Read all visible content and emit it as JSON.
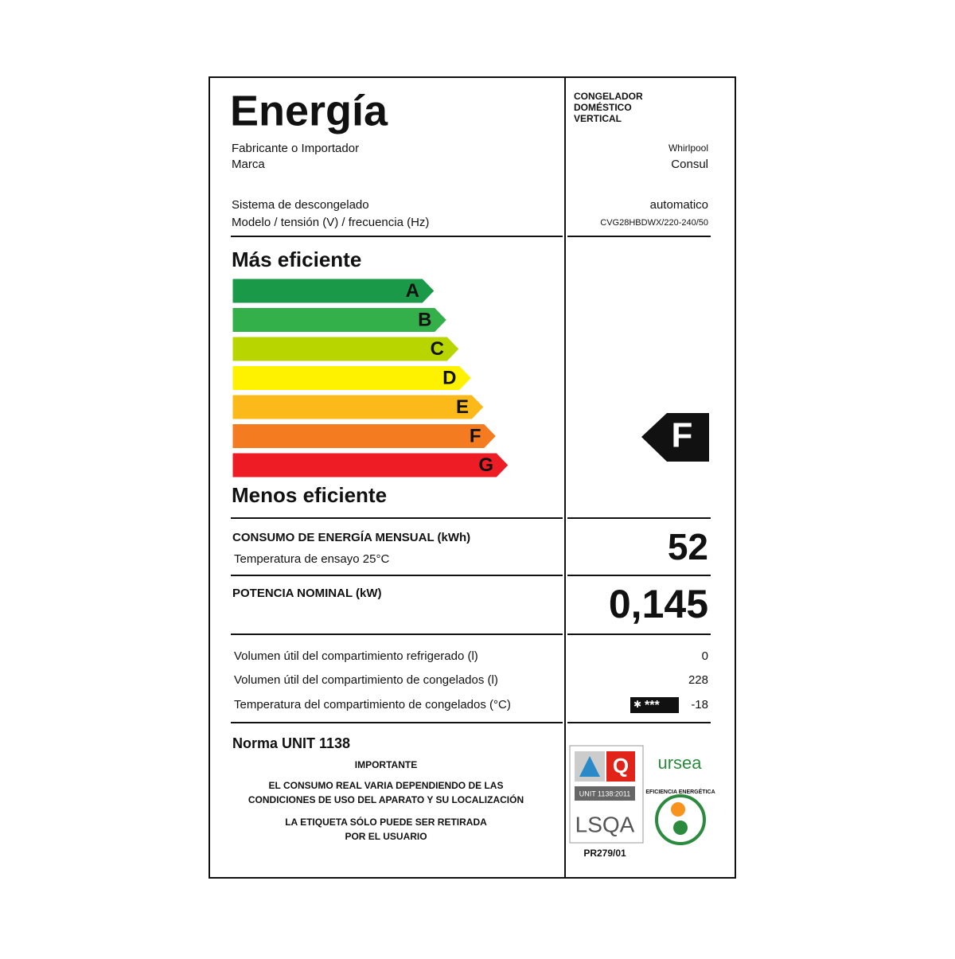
{
  "header": {
    "title": "Energía",
    "product_type": [
      "CONGELADOR",
      "DOMÉSTICO",
      "VERTICAL"
    ]
  },
  "info": [
    {
      "label": "Fabricante o Importador",
      "value": "Whirlpool"
    },
    {
      "label": "Marca",
      "value": "Consul"
    },
    {
      "label": "Sistema de descongelado",
      "value": "automatico"
    },
    {
      "label": "Modelo / tensión (V) / frecuencia (Hz)",
      "value": "CVG28HBDWX/220-240/50"
    }
  ],
  "scale": {
    "top_label": "Más eficiente",
    "bottom_label": "Menos eficiente",
    "classes": [
      {
        "letter": "A",
        "color": "#1a9a48"
      },
      {
        "letter": "B",
        "color": "#33b04a"
      },
      {
        "letter": "C",
        "color": "#b8d500"
      },
      {
        "letter": "D",
        "color": "#fff200"
      },
      {
        "letter": "E",
        "color": "#fbba1a"
      },
      {
        "letter": "F",
        "color": "#f47b20"
      },
      {
        "letter": "G",
        "color": "#ee1c25"
      }
    ],
    "rating": "F"
  },
  "consumption": {
    "label": "CONSUMO DE ENERGÍA MENSUAL (kWh)",
    "note": "Temperatura de ensayo 25°C",
    "value": 52
  },
  "power": {
    "label": "POTENCIA NOMINAL (kW)",
    "value": "0,145"
  },
  "details": [
    {
      "label": "Volumen útil del compartimiento refrigerado (l)",
      "value": 0
    },
    {
      "label": "Volumen útil del compartimiento de congelados (l)",
      "value": 228
    },
    {
      "label": "Temperatura del compartimiento de congelados (°C)",
      "value": -18,
      "stars": "***"
    }
  ],
  "footer": {
    "norma": "Norma UNIT 1138",
    "important_title": "IMPORTANTE",
    "important_lines": [
      "EL CONSUMO REAL VARIA DEPENDIENDO DE LAS",
      "CONDICIONES DE USO DEL APARATO Y SU LOCALIZACIÓN",
      "LA ETIQUETA SÓLO PUEDE SER RETIRADA",
      "POR EL USUARIO"
    ],
    "cert_standard": "UNIT 1138:2011",
    "cert_name": "LSQA",
    "cert_code": "PR279/01",
    "ursea": "ursea",
    "efficiency_badge": "EFICIENCIA ENERGÉTICA"
  }
}
